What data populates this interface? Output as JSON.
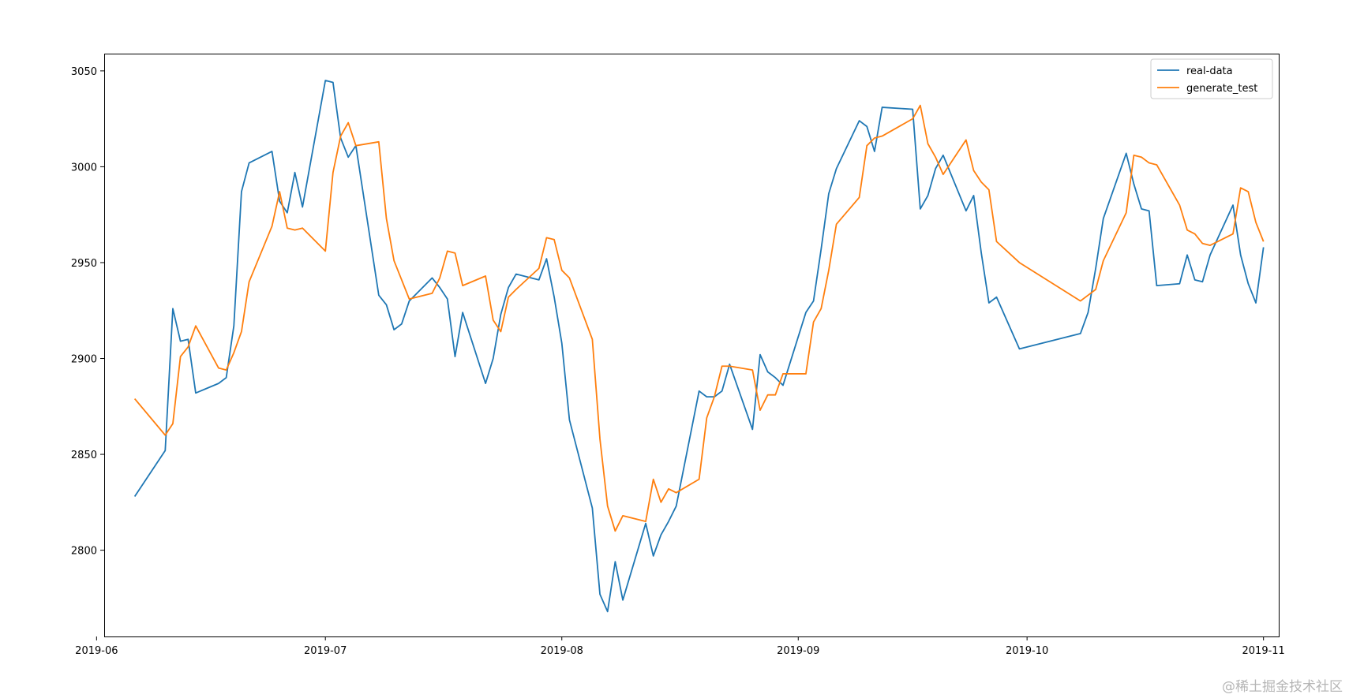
{
  "chart_data": {
    "type": "line",
    "x_type": "date",
    "xlim": [
      "2019-06-02",
      "2019-11-03"
    ],
    "ylim": [
      2755,
      3059
    ],
    "x_ticks": [
      "2019-06",
      "2019-07",
      "2019-08",
      "2019-09",
      "2019-10",
      "2019-11"
    ],
    "x_tick_dates": [
      "2019-06-01",
      "2019-07-01",
      "2019-08-01",
      "2019-09-01",
      "2019-10-01",
      "2019-11-01"
    ],
    "y_ticks": [
      2800,
      2850,
      2900,
      2950,
      3000,
      3050
    ],
    "grid": false,
    "legend_position": "top-right",
    "series": [
      {
        "name": "real-data",
        "color": "#1f77b4",
        "points": [
          [
            "2019-06-06",
            2828
          ],
          [
            "2019-06-10",
            2852
          ],
          [
            "2019-06-11",
            2926
          ],
          [
            "2019-06-12",
            2909
          ],
          [
            "2019-06-13",
            2910
          ],
          [
            "2019-06-14",
            2882
          ],
          [
            "2019-06-17",
            2887
          ],
          [
            "2019-06-18",
            2890
          ],
          [
            "2019-06-19",
            2917
          ],
          [
            "2019-06-20",
            2987
          ],
          [
            "2019-06-21",
            3002
          ],
          [
            "2019-06-24",
            3008
          ],
          [
            "2019-06-25",
            2982
          ],
          [
            "2019-06-26",
            2976
          ],
          [
            "2019-06-27",
            2997
          ],
          [
            "2019-06-28",
            2979
          ],
          [
            "2019-07-01",
            3045
          ],
          [
            "2019-07-02",
            3044
          ],
          [
            "2019-07-03",
            3015
          ],
          [
            "2019-07-04",
            3005
          ],
          [
            "2019-07-05",
            3011
          ],
          [
            "2019-07-08",
            2933
          ],
          [
            "2019-07-09",
            2928
          ],
          [
            "2019-07-10",
            2915
          ],
          [
            "2019-07-11",
            2918
          ],
          [
            "2019-07-12",
            2930
          ],
          [
            "2019-07-15",
            2942
          ],
          [
            "2019-07-16",
            2937
          ],
          [
            "2019-07-17",
            2931
          ],
          [
            "2019-07-18",
            2901
          ],
          [
            "2019-07-19",
            2924
          ],
          [
            "2019-07-22",
            2887
          ],
          [
            "2019-07-23",
            2900
          ],
          [
            "2019-07-24",
            2923
          ],
          [
            "2019-07-25",
            2937
          ],
          [
            "2019-07-26",
            2944
          ],
          [
            "2019-07-29",
            2941
          ],
          [
            "2019-07-30",
            2952
          ],
          [
            "2019-07-31",
            2932
          ],
          [
            "2019-08-01",
            2908
          ],
          [
            "2019-08-02",
            2868
          ],
          [
            "2019-08-05",
            2822
          ],
          [
            "2019-08-06",
            2777
          ],
          [
            "2019-08-07",
            2768
          ],
          [
            "2019-08-08",
            2794
          ],
          [
            "2019-08-09",
            2774
          ],
          [
            "2019-08-12",
            2814
          ],
          [
            "2019-08-13",
            2797
          ],
          [
            "2019-08-14",
            2808
          ],
          [
            "2019-08-15",
            2815
          ],
          [
            "2019-08-16",
            2823
          ],
          [
            "2019-08-19",
            2883
          ],
          [
            "2019-08-20",
            2880
          ],
          [
            "2019-08-21",
            2880
          ],
          [
            "2019-08-22",
            2883
          ],
          [
            "2019-08-23",
            2897
          ],
          [
            "2019-08-26",
            2863
          ],
          [
            "2019-08-27",
            2902
          ],
          [
            "2019-08-28",
            2893
          ],
          [
            "2019-08-29",
            2890
          ],
          [
            "2019-08-30",
            2886
          ],
          [
            "2019-09-02",
            2924
          ],
          [
            "2019-09-03",
            2930
          ],
          [
            "2019-09-04",
            2957
          ],
          [
            "2019-09-05",
            2986
          ],
          [
            "2019-09-06",
            2999
          ],
          [
            "2019-09-09",
            3024
          ],
          [
            "2019-09-10",
            3021
          ],
          [
            "2019-09-11",
            3008
          ],
          [
            "2019-09-12",
            3031
          ],
          [
            "2019-09-16",
            3030
          ],
          [
            "2019-09-17",
            2978
          ],
          [
            "2019-09-18",
            2985
          ],
          [
            "2019-09-19",
            2999
          ],
          [
            "2019-09-20",
            3006
          ],
          [
            "2019-09-23",
            2977
          ],
          [
            "2019-09-24",
            2985
          ],
          [
            "2019-09-25",
            2955
          ],
          [
            "2019-09-26",
            2929
          ],
          [
            "2019-09-27",
            2932
          ],
          [
            "2019-09-30",
            2905
          ],
          [
            "2019-10-08",
            2913
          ],
          [
            "2019-10-09",
            2924
          ],
          [
            "2019-10-10",
            2947
          ],
          [
            "2019-10-11",
            2973
          ],
          [
            "2019-10-14",
            3007
          ],
          [
            "2019-10-15",
            2991
          ],
          [
            "2019-10-16",
            2978
          ],
          [
            "2019-10-17",
            2977
          ],
          [
            "2019-10-18",
            2938
          ],
          [
            "2019-10-21",
            2939
          ],
          [
            "2019-10-22",
            2954
          ],
          [
            "2019-10-23",
            2941
          ],
          [
            "2019-10-24",
            2940
          ],
          [
            "2019-10-25",
            2954
          ],
          [
            "2019-10-28",
            2980
          ],
          [
            "2019-10-29",
            2954
          ],
          [
            "2019-10-30",
            2939
          ],
          [
            "2019-10-31",
            2929
          ],
          [
            "2019-11-01",
            2958
          ]
        ]
      },
      {
        "name": "generate_test",
        "color": "#ff7f0e",
        "points": [
          [
            "2019-06-06",
            2879
          ],
          [
            "2019-06-10",
            2860
          ],
          [
            "2019-06-11",
            2866
          ],
          [
            "2019-06-12",
            2901
          ],
          [
            "2019-06-13",
            2906
          ],
          [
            "2019-06-14",
            2917
          ],
          [
            "2019-06-17",
            2895
          ],
          [
            "2019-06-18",
            2894
          ],
          [
            "2019-06-19",
            2903
          ],
          [
            "2019-06-20",
            2914
          ],
          [
            "2019-06-21",
            2940
          ],
          [
            "2019-06-24",
            2969
          ],
          [
            "2019-06-25",
            2987
          ],
          [
            "2019-06-26",
            2968
          ],
          [
            "2019-06-27",
            2967
          ],
          [
            "2019-06-28",
            2968
          ],
          [
            "2019-07-01",
            2956
          ],
          [
            "2019-07-02",
            2997
          ],
          [
            "2019-07-03",
            3016
          ],
          [
            "2019-07-04",
            3023
          ],
          [
            "2019-07-05",
            3011
          ],
          [
            "2019-07-08",
            3013
          ],
          [
            "2019-07-09",
            2973
          ],
          [
            "2019-07-10",
            2951
          ],
          [
            "2019-07-11",
            2941
          ],
          [
            "2019-07-12",
            2931
          ],
          [
            "2019-07-15",
            2934
          ],
          [
            "2019-07-16",
            2942
          ],
          [
            "2019-07-17",
            2956
          ],
          [
            "2019-07-18",
            2955
          ],
          [
            "2019-07-19",
            2938
          ],
          [
            "2019-07-22",
            2943
          ],
          [
            "2019-07-23",
            2920
          ],
          [
            "2019-07-24",
            2914
          ],
          [
            "2019-07-25",
            2932
          ],
          [
            "2019-07-26",
            2936
          ],
          [
            "2019-07-29",
            2947
          ],
          [
            "2019-07-30",
            2963
          ],
          [
            "2019-07-31",
            2962
          ],
          [
            "2019-08-01",
            2946
          ],
          [
            "2019-08-02",
            2942
          ],
          [
            "2019-08-05",
            2910
          ],
          [
            "2019-08-06",
            2858
          ],
          [
            "2019-08-07",
            2823
          ],
          [
            "2019-08-08",
            2810
          ],
          [
            "2019-08-09",
            2818
          ],
          [
            "2019-08-12",
            2815
          ],
          [
            "2019-08-13",
            2837
          ],
          [
            "2019-08-14",
            2825
          ],
          [
            "2019-08-15",
            2832
          ],
          [
            "2019-08-16",
            2830
          ],
          [
            "2019-08-19",
            2837
          ],
          [
            "2019-08-20",
            2869
          ],
          [
            "2019-08-21",
            2880
          ],
          [
            "2019-08-22",
            2896
          ],
          [
            "2019-08-23",
            2896
          ],
          [
            "2019-08-26",
            2894
          ],
          [
            "2019-08-27",
            2873
          ],
          [
            "2019-08-28",
            2881
          ],
          [
            "2019-08-29",
            2881
          ],
          [
            "2019-08-30",
            2892
          ],
          [
            "2019-09-02",
            2892
          ],
          [
            "2019-09-03",
            2919
          ],
          [
            "2019-09-04",
            2926
          ],
          [
            "2019-09-05",
            2946
          ],
          [
            "2019-09-06",
            2970
          ],
          [
            "2019-09-09",
            2984
          ],
          [
            "2019-09-10",
            3011
          ],
          [
            "2019-09-11",
            3015
          ],
          [
            "2019-09-12",
            3016
          ],
          [
            "2019-09-16",
            3025
          ],
          [
            "2019-09-17",
            3032
          ],
          [
            "2019-09-18",
            3012
          ],
          [
            "2019-09-19",
            3005
          ],
          [
            "2019-09-20",
            2996
          ],
          [
            "2019-09-23",
            3014
          ],
          [
            "2019-09-24",
            2998
          ],
          [
            "2019-09-25",
            2992
          ],
          [
            "2019-09-26",
            2988
          ],
          [
            "2019-09-27",
            2961
          ],
          [
            "2019-09-30",
            2950
          ],
          [
            "2019-10-08",
            2930
          ],
          [
            "2019-10-09",
            2933
          ],
          [
            "2019-10-10",
            2936
          ],
          [
            "2019-10-11",
            2951
          ],
          [
            "2019-10-14",
            2976
          ],
          [
            "2019-10-15",
            3006
          ],
          [
            "2019-10-16",
            3005
          ],
          [
            "2019-10-17",
            3002
          ],
          [
            "2019-10-18",
            3001
          ],
          [
            "2019-10-21",
            2980
          ],
          [
            "2019-10-22",
            2967
          ],
          [
            "2019-10-23",
            2965
          ],
          [
            "2019-10-24",
            2960
          ],
          [
            "2019-10-25",
            2959
          ],
          [
            "2019-10-28",
            2965
          ],
          [
            "2019-10-29",
            2989
          ],
          [
            "2019-10-30",
            2987
          ],
          [
            "2019-10-31",
            2971
          ],
          [
            "2019-11-01",
            2961
          ]
        ]
      }
    ]
  },
  "watermark": "@稀土掘金技术社区"
}
